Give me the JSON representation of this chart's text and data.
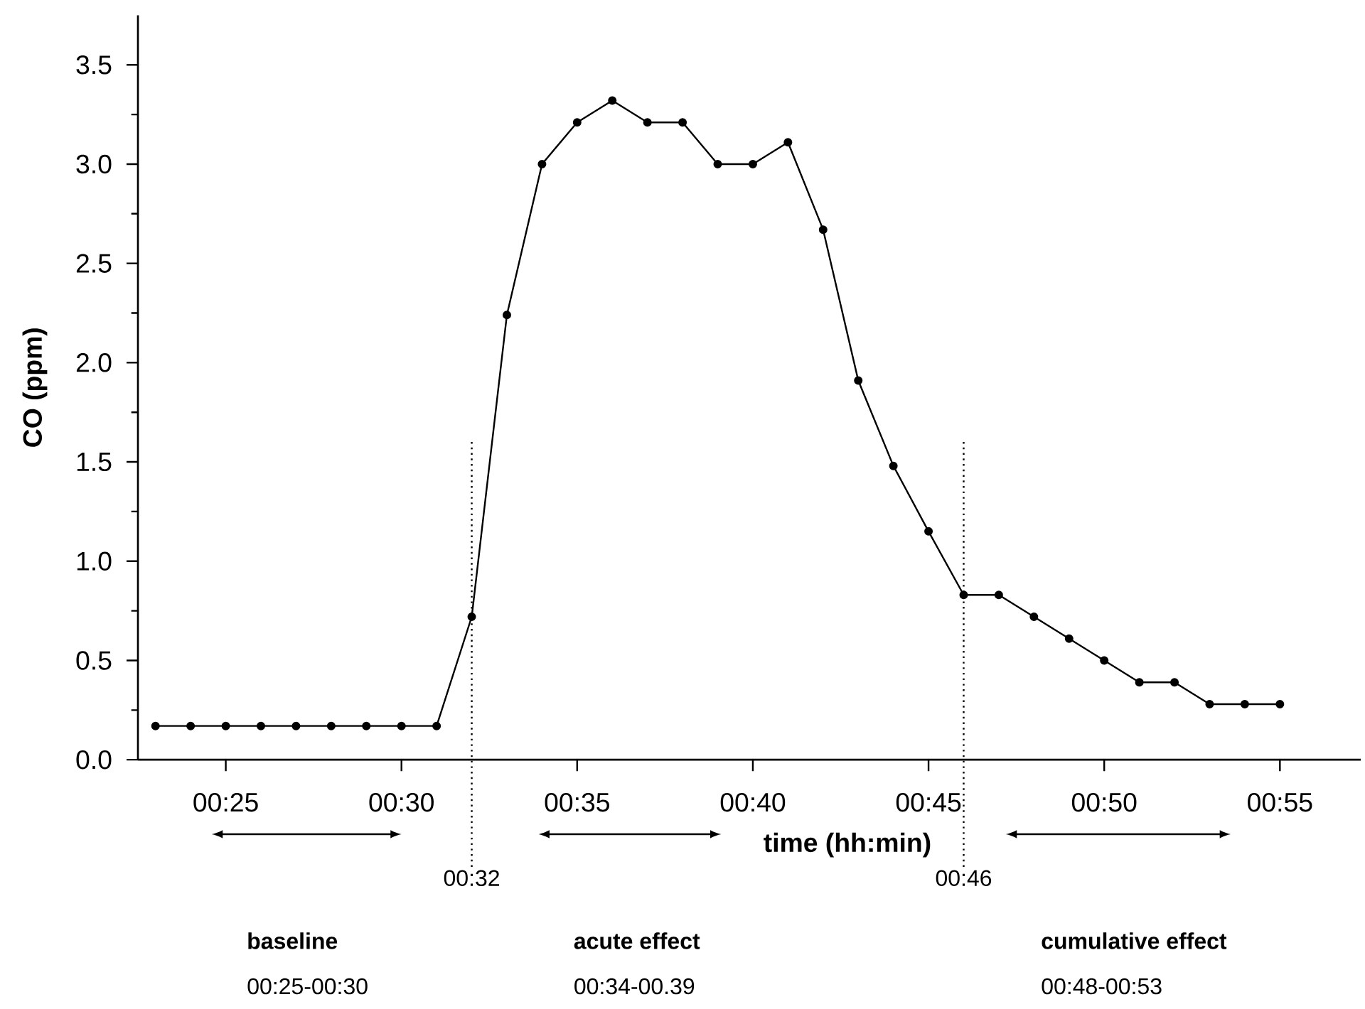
{
  "chart_data": {
    "type": "line",
    "xlabel": "time (hh:min)",
    "ylabel": "CO (ppm)",
    "x": [
      0.38333,
      0.4,
      0.41667,
      0.43333,
      0.45,
      0.46667,
      0.48333,
      0.5,
      0.51667,
      0.53333,
      0.55,
      0.56667,
      0.58333,
      0.6,
      0.61667,
      0.63333,
      0.65,
      0.66667,
      0.68333,
      0.7,
      0.71667,
      0.73333,
      0.75,
      0.76667,
      0.78333,
      0.8,
      0.81667,
      0.83333,
      0.85,
      0.86667,
      0.88333,
      0.9,
      0.91667
    ],
    "series": [
      {
        "color": "#000000",
        "values": [
          0.17,
          0.17,
          0.17,
          0.17,
          0.17,
          0.17,
          0.17,
          0.17,
          0.17,
          0.72,
          2.24,
          3.0,
          3.21,
          3.32,
          3.21,
          3.21,
          3.0,
          3.0,
          3.11,
          2.67,
          1.91,
          1.48,
          1.15,
          0.83,
          0.83,
          0.72,
          0.61,
          0.5,
          0.39,
          0.39,
          0.28,
          0.28,
          0.28
        ]
      }
    ],
    "xlim": [
      0.375,
      0.955
    ],
    "ylim": [
      0,
      3.75
    ],
    "xticks": [
      {
        "value": 0.41667,
        "label": "00:25"
      },
      {
        "value": 0.5,
        "label": "00:30"
      },
      {
        "value": 0.58333,
        "label": "00:35"
      },
      {
        "value": 0.66667,
        "label": "00:40"
      },
      {
        "value": 0.75,
        "label": "00:45"
      },
      {
        "value": 0.83333,
        "label": "00:50"
      },
      {
        "value": 0.91667,
        "label": "00:55"
      }
    ],
    "yticks": [
      {
        "value": 0,
        "label": "0.0"
      },
      0.5,
      {
        "value": 1,
        "label": "1.0"
      },
      1.5,
      {
        "value": 2,
        "label": "2.0"
      },
      2.5,
      {
        "value": 3,
        "label": "3.0"
      },
      3.5
    ],
    "ref_lines": [
      {
        "axis": "x",
        "value": 0.533333,
        "color": "#000000",
        "line_style": "dotted"
      },
      {
        "axis": "x",
        "value": 0.766667,
        "color": "#000000",
        "line_style": "dotted"
      }
    ],
    "annotations": [
      "baseline",
      "00:25-00:30",
      "acute effect",
      "00:34-00.39",
      "cumulative effect",
      "00:48-00:53",
      "00:32",
      "00:46"
    ],
    "marker": "circle",
    "line_style": "solid"
  }
}
